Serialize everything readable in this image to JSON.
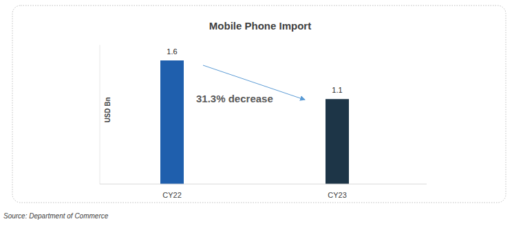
{
  "chart_data": {
    "type": "bar",
    "title": "Mobile Phone Import",
    "y_label": "USD Bn",
    "annotation": "31.3% decrease",
    "source": "Source: Department of Commerce",
    "categories": [
      "CY22",
      "CY23"
    ],
    "values": [
      1.6,
      1.1
    ],
    "colors": [
      "#1f5fad",
      "#1d3547"
    ],
    "ylim": [
      0,
      1.8
    ],
    "yticks": [
      0
    ],
    "grid": false,
    "data_labels": true,
    "tick_labels": "x"
  }
}
